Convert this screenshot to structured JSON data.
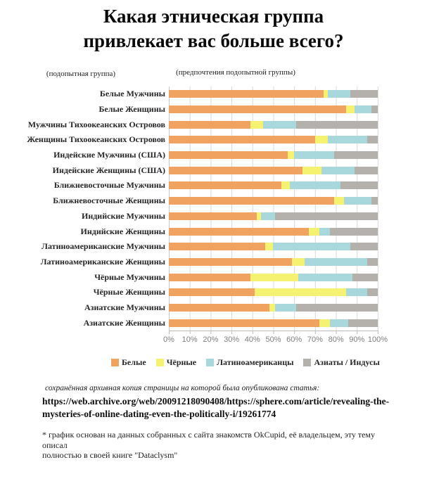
{
  "header": {
    "title_line1": "Какая этническая группа",
    "title_line2": "привлекает вас больше всего?",
    "subtitle_left": "(подопытная группа)",
    "subtitle_right": "(предпочтения подопытной группы)"
  },
  "chart_data": {
    "type": "bar",
    "orientation": "horizontal",
    "stacked": true,
    "title": "Какая этническая группа привлекает вас больше всего?",
    "xlabel": "",
    "ylabel": "",
    "xlim": [
      0,
      100
    ],
    "unit": "%",
    "grid": true,
    "legend_position": "bottom",
    "x_ticks": [
      "0%",
      "10%",
      "20%",
      "30%",
      "40%",
      "50%",
      "60%",
      "70%",
      "80%",
      "90%",
      "100%"
    ],
    "categories": [
      "Белые Мужчины",
      "Белые Женщины",
      "Мужчины Тихоокеанских Островов",
      "Женщины Тихоокеанских Островов",
      "Индейские Мужчины (США)",
      "Индейские Женщины (США)",
      "Ближневосточные Мужчины",
      "Ближневосточные Женщины",
      "Индийские Мужчины",
      "Индийские Женщины",
      "Латиноамериканские Мужчины",
      "Латиноамериканские Женщины",
      "Чёрные Мужчины",
      "Чёрные Женщины",
      "Азиатские Мужчины",
      "Азиатские Женщины"
    ],
    "series": [
      {
        "name": "Белые",
        "color": "#F0A360",
        "values": [
          74,
          85,
          39,
          70,
          57,
          64,
          54,
          79,
          42,
          67,
          46,
          59,
          39,
          41,
          48,
          72
        ]
      },
      {
        "name": "Чёрные",
        "color": "#F5F272",
        "values": [
          2,
          4,
          6,
          6,
          3,
          9,
          4,
          5,
          2,
          5,
          4,
          6,
          23,
          44,
          3,
          5
        ]
      },
      {
        "name": "Латиноамериканцы",
        "color": "#A9D8DC",
        "values": [
          11,
          8,
          16,
          19,
          19,
          16,
          24,
          13,
          7,
          5,
          37,
          30,
          26,
          10,
          10,
          9
        ]
      },
      {
        "name": "Азиаты / Индусы",
        "color": "#B4B1AC",
        "values": [
          13,
          3,
          39,
          5,
          21,
          11,
          18,
          3,
          49,
          23,
          13,
          5,
          12,
          5,
          39,
          14
        ]
      }
    ]
  },
  "footer": {
    "archive_note": "сохранённая архивная копия страницы на которой была опубликована статья:",
    "url_line1": "https://web.archive.org/web/20091218090408/https://sphere.com/article/revealing-the-",
    "url_line2": "mysteries-of-online-dating-even-the-politically-i/19261774",
    "footnote_line1": "* график основан на данных собранных с сайта знакомств OkCupid, её владельцем, эту тему описал",
    "footnote_line2": "полностью в своей книге \"Dataclysm\""
  }
}
